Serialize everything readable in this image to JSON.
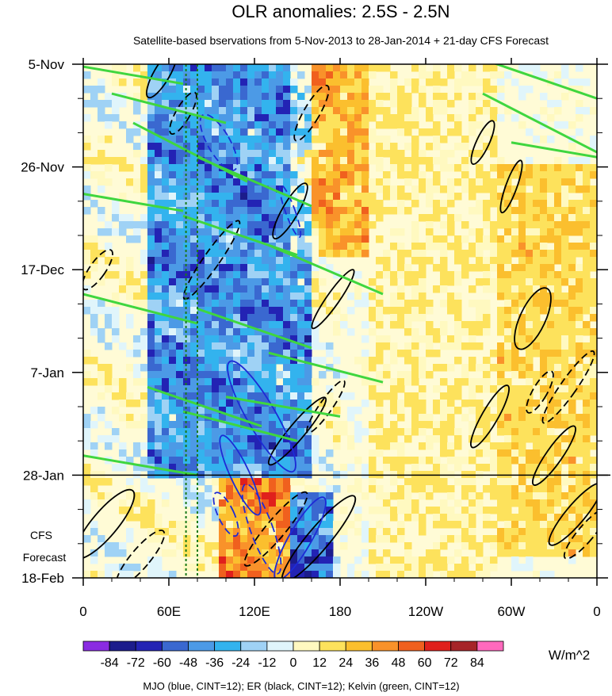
{
  "chart_data": {
    "type": "heatmap",
    "title": "OLR anomalies: 2.5S - 2.5N",
    "subtitle": "Satellite-based bservations from 5-Nov-2013 to 28-Jan-2014 + 21-day CFS Forecast",
    "x_ticks": [
      {
        "label": "0",
        "lon": 0
      },
      {
        "label": "60E",
        "lon": 60
      },
      {
        "label": "120E",
        "lon": 120
      },
      {
        "label": "180",
        "lon": 180
      },
      {
        "label": "120W",
        "lon": 240
      },
      {
        "label": "60W",
        "lon": 300
      },
      {
        "label": "0",
        "lon": 360
      }
    ],
    "xlim": [
      0,
      360
    ],
    "y_ticks": [
      {
        "label": "5-Nov",
        "day": 0
      },
      {
        "label": "26-Nov",
        "day": 21
      },
      {
        "label": "17-Dec",
        "day": 42
      },
      {
        "label": "7-Jan",
        "day": 63
      },
      {
        "label": "28-Jan",
        "day": 84
      },
      {
        "label": "18-Feb",
        "day": 105
      }
    ],
    "ylim_days": [
      0,
      105
    ],
    "forecast_start_day": 84,
    "forecast_label_lines": [
      "CFS",
      "Forecast"
    ],
    "reference_lines_lon": [
      72,
      80
    ],
    "colorbar": {
      "levels": [
        "-84",
        "-72",
        "-60",
        "-48",
        "-36",
        "-24",
        "-12",
        "0",
        "12",
        "24",
        "36",
        "48",
        "60",
        "72",
        "84"
      ],
      "colors": [
        "#8a2be2",
        "#1c1c8c",
        "#2323b4",
        "#3a68d0",
        "#4c9ae6",
        "#33b3ee",
        "#9fd2f5",
        "#e0f5fb",
        "#fff9c0",
        "#fde25c",
        "#fbbf2e",
        "#f9922a",
        "#f0601e",
        "#e0201c",
        "#a62428",
        "#ff69bd"
      ],
      "units": "W/m^2"
    },
    "contours_legend": "MJO (blue, CINT=12); ER (black, CINT=12); Kelvin (green, CINT=12)",
    "regions": [
      {
        "name": "indian-ocean-convection",
        "lon": [
          45,
          160
        ],
        "day": [
          0,
          84
        ],
        "anomaly": -48
      },
      {
        "name": "warm-pool-suppression",
        "lon": [
          145,
          200
        ],
        "day": [
          0,
          40
        ],
        "anomaly": 36
      },
      {
        "name": "central-pacific-dry",
        "lon": [
          200,
          290
        ],
        "day": [
          0,
          105
        ],
        "anomaly": 12
      },
      {
        "name": "forecast-positive-maritime",
        "lon": [
          95,
          145
        ],
        "day": [
          84,
          105
        ],
        "anomaly": 48
      },
      {
        "name": "forecast-negative-westpac",
        "lon": [
          145,
          175
        ],
        "day": [
          88,
          105
        ],
        "anomaly": -60
      },
      {
        "name": "south-america-africa-band",
        "lon": [
          290,
          360
        ],
        "day": [
          20,
          100
        ],
        "anomaly": 24
      }
    ]
  }
}
